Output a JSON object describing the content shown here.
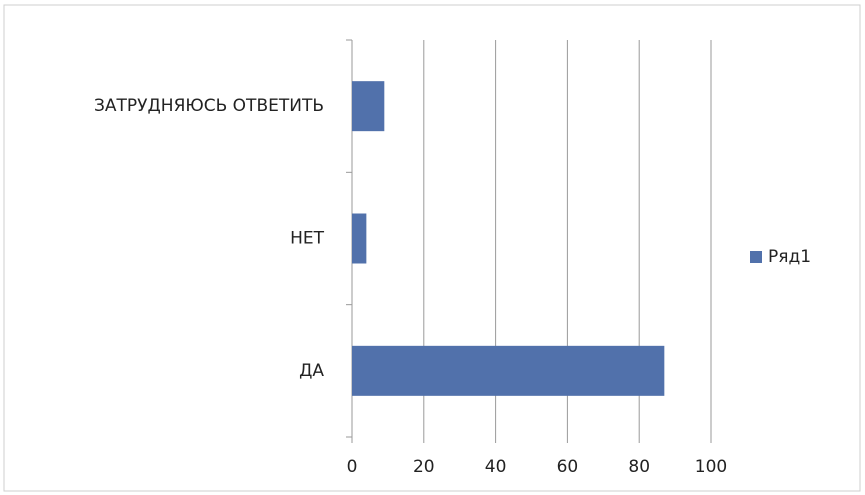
{
  "chart_data": {
    "type": "bar",
    "orientation": "horizontal",
    "categories": [
      "ЗАТРУДНЯЮСЬ ОТВЕТИТЬ",
      "НЕТ",
      "ДА"
    ],
    "series": [
      {
        "name": "Ряд1",
        "color": "#5171ab",
        "values": [
          9,
          4,
          87
        ]
      }
    ],
    "xlim": [
      0,
      100
    ],
    "xticks": [
      0,
      20,
      40,
      60,
      80,
      100
    ],
    "grid": true,
    "legend": "right"
  }
}
